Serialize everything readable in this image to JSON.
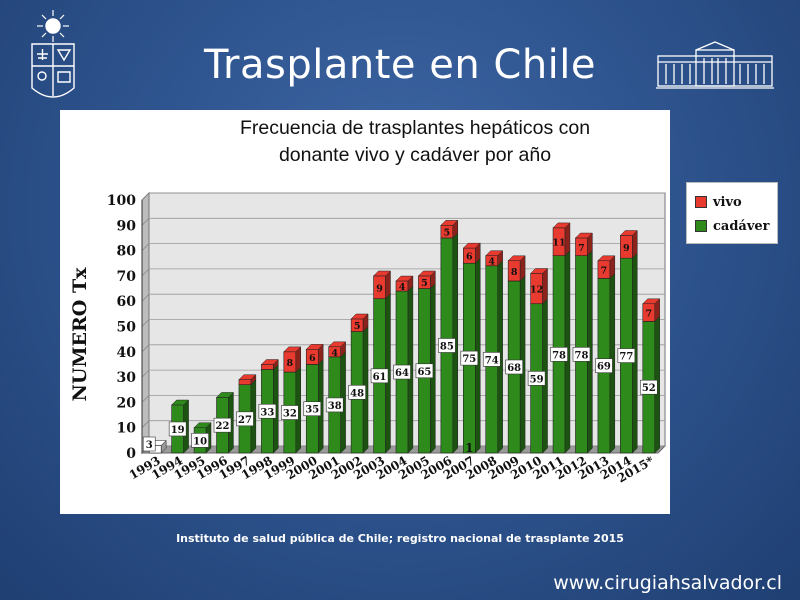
{
  "slide": {
    "title": "Trasplante en Chile",
    "source": "Instituto de salud pública de Chile; registro nacional de trasplante 2015",
    "website": "www.cirugiahsalvador.cl"
  },
  "colors": {
    "vivo": "#e83a2f",
    "cadaver": "#2f8a1c",
    "background": "#2f5590"
  },
  "chart_data": {
    "type": "bar",
    "stacked": true,
    "title_lines": [
      "Frecuencia de trasplantes hepáticos con",
      "donante vivo y cadáver por año"
    ],
    "ylabel": "NUMERO Tx",
    "xlabel": "",
    "ylim": [
      0,
      100
    ],
    "yticks": [
      0,
      10,
      20,
      30,
      40,
      50,
      60,
      70,
      80,
      90,
      100
    ],
    "grid": true,
    "legend_position": "right",
    "categories": [
      "1993",
      "1994",
      "1995",
      "1996",
      "1997",
      "1998",
      "1999",
      "2000",
      "2001",
      "2002",
      "2003",
      "2004",
      "2005",
      "2006",
      "2007",
      "2008",
      "2009",
      "2010",
      "2011",
      "2012",
      "2013",
      "2014",
      "2015*"
    ],
    "series": [
      {
        "name": "cadáver",
        "color": "#2f8a1c",
        "values": [
          3,
          19,
          10,
          22,
          27,
          33,
          32,
          35,
          38,
          48,
          61,
          64,
          65,
          85,
          75,
          74,
          68,
          59,
          78,
          78,
          69,
          77,
          52
        ],
        "labels": [
          "3",
          "19",
          "10",
          "22",
          "27",
          "33",
          "32",
          "35",
          "38",
          "48",
          "61",
          "64",
          "65",
          "85",
          "75",
          "74",
          "68",
          "59",
          "78",
          "78",
          "69",
          "77",
          "52"
        ]
      },
      {
        "name": "vivo",
        "color": "#e83a2f",
        "values": [
          0,
          0,
          0,
          0,
          2,
          2,
          8,
          6,
          4,
          5,
          9,
          4,
          5,
          5,
          6,
          4,
          8,
          12,
          11,
          7,
          7,
          9,
          7
        ],
        "labels": [
          "",
          "",
          "",
          "",
          "",
          "",
          "8",
          "6",
          "4",
          "5",
          "9",
          "4",
          "5",
          "5",
          "6",
          "4",
          "8",
          "12",
          "11",
          "7",
          "7",
          "9",
          "7"
        ]
      }
    ],
    "annotations": [
      {
        "category": "2007",
        "text": "1"
      }
    ]
  }
}
